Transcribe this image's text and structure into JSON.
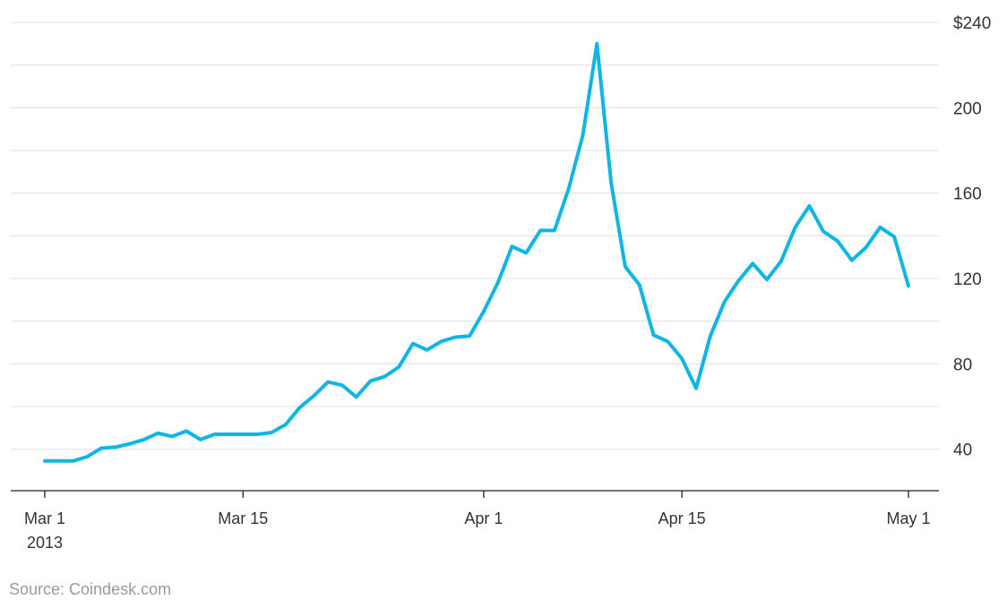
{
  "chart_data": {
    "type": "line",
    "x_type": "date",
    "y_ticks": [
      40,
      80,
      120,
      160,
      200,
      240
    ],
    "y_tick_labels": [
      "40",
      "80",
      "120",
      "160",
      "200",
      "$240"
    ],
    "ylim": [
      20,
      240
    ],
    "grid": true,
    "x_ticks": [
      {
        "date": "2013-03-01",
        "label": "Mar 1",
        "sublabel": "2013"
      },
      {
        "date": "2013-03-15",
        "label": "Mar 15"
      },
      {
        "date": "2013-04-01",
        "label": "Apr 1"
      },
      {
        "date": "2013-04-15",
        "label": "Apr 15"
      },
      {
        "date": "2013-05-01",
        "label": "May 1"
      }
    ],
    "xlim": [
      "2013-03-01",
      "2013-05-01"
    ],
    "series": [
      {
        "color": "#0fb5e6",
        "points": [
          [
            "2013-03-01",
            34.5
          ],
          [
            "2013-03-02",
            34.5
          ],
          [
            "2013-03-03",
            34.5
          ],
          [
            "2013-03-04",
            36.5
          ],
          [
            "2013-03-05",
            40.5
          ],
          [
            "2013-03-06",
            41
          ],
          [
            "2013-03-07",
            42.5
          ],
          [
            "2013-03-08",
            44.5
          ],
          [
            "2013-03-09",
            47.5
          ],
          [
            "2013-03-10",
            46
          ],
          [
            "2013-03-11",
            48.5
          ],
          [
            "2013-03-12",
            44.5
          ],
          [
            "2013-03-13",
            47
          ],
          [
            "2013-03-14",
            47
          ],
          [
            "2013-03-15",
            47
          ],
          [
            "2013-03-16",
            47
          ],
          [
            "2013-03-17",
            47.8
          ],
          [
            "2013-03-18",
            51.5
          ],
          [
            "2013-03-19",
            59.5
          ],
          [
            "2013-03-20",
            65
          ],
          [
            "2013-03-21",
            71.5
          ],
          [
            "2013-03-22",
            70
          ],
          [
            "2013-03-23",
            64.5
          ],
          [
            "2013-03-24",
            72
          ],
          [
            "2013-03-25",
            74
          ],
          [
            "2013-03-26",
            78.5
          ],
          [
            "2013-03-27",
            89.5
          ],
          [
            "2013-03-28",
            86.5
          ],
          [
            "2013-03-29",
            90.5
          ],
          [
            "2013-03-30",
            92.5
          ],
          [
            "2013-03-31",
            93
          ],
          [
            "2013-04-01",
            104.5
          ],
          [
            "2013-04-02",
            118
          ],
          [
            "2013-04-03",
            135
          ],
          [
            "2013-04-04",
            132
          ],
          [
            "2013-04-05",
            142.5
          ],
          [
            "2013-04-06",
            142.5
          ],
          [
            "2013-04-07",
            162
          ],
          [
            "2013-04-08",
            187
          ],
          [
            "2013-04-09",
            230
          ],
          [
            "2013-04-10",
            165
          ],
          [
            "2013-04-11",
            125.5
          ],
          [
            "2013-04-12",
            117
          ],
          [
            "2013-04-13",
            93.5
          ],
          [
            "2013-04-14",
            90.5
          ],
          [
            "2013-04-15",
            82.5
          ],
          [
            "2013-04-16",
            68.5
          ],
          [
            "2013-04-17",
            93
          ],
          [
            "2013-04-18",
            109
          ],
          [
            "2013-04-19",
            119
          ],
          [
            "2013-04-20",
            127
          ],
          [
            "2013-04-21",
            119.5
          ],
          [
            "2013-04-22",
            128
          ],
          [
            "2013-04-23",
            144
          ],
          [
            "2013-04-24",
            154
          ],
          [
            "2013-04-25",
            142
          ],
          [
            "2013-04-26",
            137.5
          ],
          [
            "2013-04-27",
            128.5
          ],
          [
            "2013-04-28",
            134.5
          ],
          [
            "2013-04-29",
            144
          ],
          [
            "2013-04-30",
            139.5
          ],
          [
            "2013-05-01",
            116.5
          ]
        ]
      }
    ]
  },
  "source": "Source: Coindesk.com"
}
